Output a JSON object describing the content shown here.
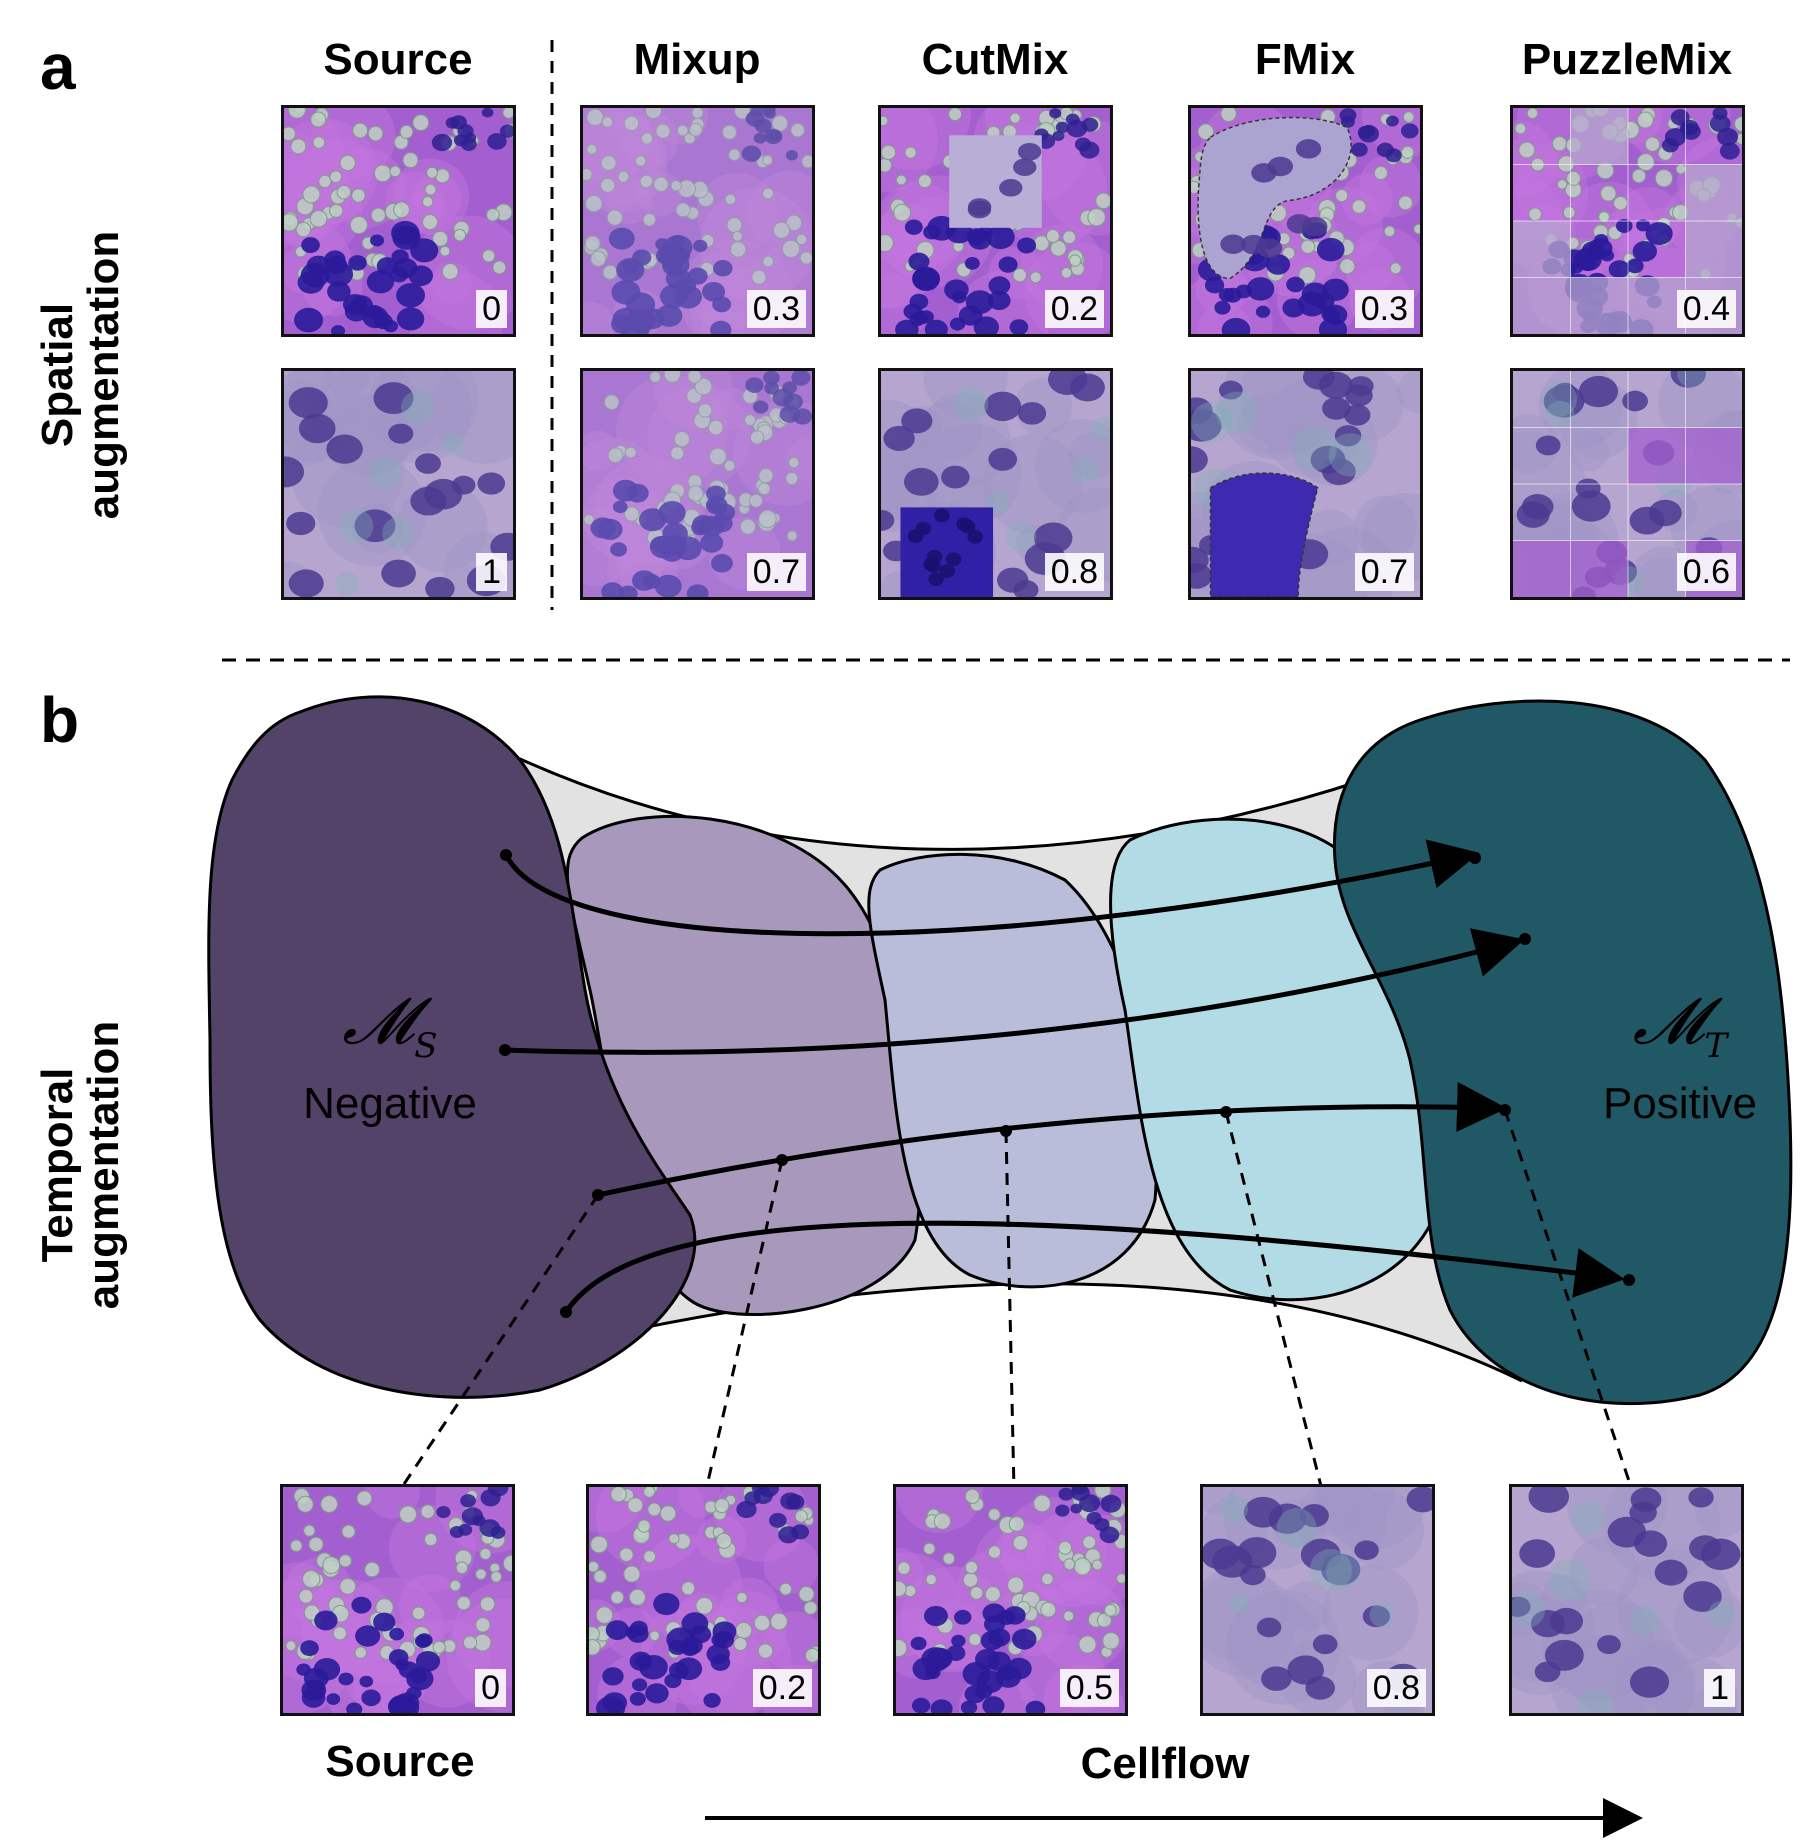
{
  "panel_a": {
    "letter": "a",
    "row_label": "Spatial augmentation",
    "columns": [
      {
        "title": "Source",
        "top_value": "0",
        "bottom_value": "1",
        "style": "source"
      },
      {
        "title": "Mixup",
        "top_value": "0.3",
        "bottom_value": "0.7",
        "style": "mixup"
      },
      {
        "title": "CutMix",
        "top_value": "0.2",
        "bottom_value": "0.8",
        "style": "cutmix"
      },
      {
        "title": "FMix",
        "top_value": "0.3",
        "bottom_value": "0.7",
        "style": "fmix"
      },
      {
        "title": "PuzzleMix",
        "top_value": "0.4",
        "bottom_value": "0.6",
        "style": "puzzlemix"
      }
    ]
  },
  "panel_b": {
    "letter": "b",
    "row_label": "Temporal augmentation",
    "source_manifold": {
      "symbol": "𝓜",
      "subscript": "S",
      "label": "Negative",
      "color": "#534368"
    },
    "target_manifold": {
      "symbol": "𝓜",
      "subscript": "T",
      "label": "Positive",
      "color": "#215866"
    },
    "intermediate_colors": [
      "#a798bc",
      "#b9bdda",
      "#b3dbe6"
    ],
    "bridge_color": "#e2e2e2",
    "bottom_tiles": [
      "0",
      "0.2",
      "0.5",
      "0.8",
      "1"
    ],
    "source_label": "Source",
    "flow_label": "Cellflow"
  }
}
